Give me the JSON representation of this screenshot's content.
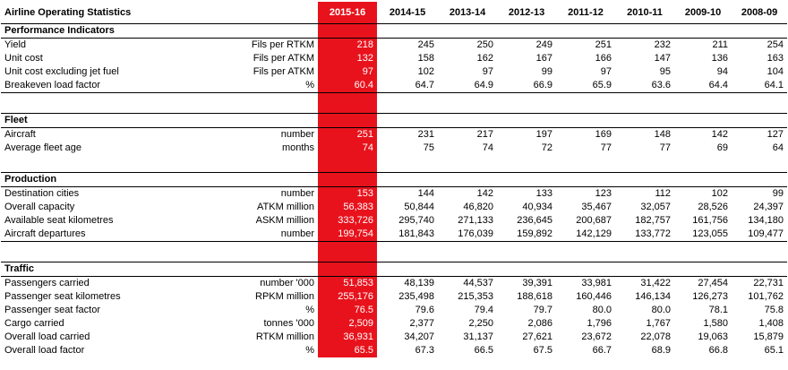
{
  "table": {
    "title": "Airline Operating Statistics",
    "years": [
      "2015-16",
      "2014-15",
      "2013-14",
      "2012-13",
      "2011-12",
      "2010-11",
      "2009-10",
      "2008-09"
    ],
    "sections": [
      {
        "name": "Performance Indicators",
        "rows": [
          {
            "label": "Yield",
            "unit": "Fils per RTKM",
            "values": [
              "218",
              "245",
              "250",
              "249",
              "251",
              "232",
              "211",
              "254"
            ]
          },
          {
            "label": "Unit cost",
            "unit": "Fils per ATKM",
            "values": [
              "132",
              "158",
              "162",
              "167",
              "166",
              "147",
              "136",
              "163"
            ]
          },
          {
            "label": "Unit cost excluding jet fuel",
            "unit": "Fils per ATKM",
            "values": [
              "97",
              "102",
              "97",
              "99",
              "97",
              "95",
              "94",
              "104"
            ]
          },
          {
            "label": "Breakeven load factor",
            "unit": "%",
            "values": [
              "60.4",
              "64.7",
              "64.9",
              "66.9",
              "65.9",
              "63.6",
              "64.4",
              "64.1"
            ]
          }
        ]
      },
      {
        "name": "Fleet",
        "rows": [
          {
            "label": "Aircraft",
            "unit": "number",
            "values": [
              "251",
              "231",
              "217",
              "197",
              "169",
              "148",
              "142",
              "127"
            ]
          },
          {
            "label": "Average fleet age",
            "unit": "months",
            "values": [
              "74",
              "75",
              "74",
              "72",
              "77",
              "77",
              "69",
              "64"
            ]
          }
        ]
      },
      {
        "name": "Production",
        "rows": [
          {
            "label": "Destination cities",
            "unit": "number",
            "values": [
              "153",
              "144",
              "142",
              "133",
              "123",
              "112",
              "102",
              "99"
            ]
          },
          {
            "label": "Overall capacity",
            "unit": "ATKM million",
            "values": [
              "56,383",
              "50,844",
              "46,820",
              "40,934",
              "35,467",
              "32,057",
              "28,526",
              "24,397"
            ]
          },
          {
            "label": "Available seat kilometres",
            "unit": "ASKM million",
            "values": [
              "333,726",
              "295,740",
              "271,133",
              "236,645",
              "200,687",
              "182,757",
              "161,756",
              "134,180"
            ]
          },
          {
            "label": "Aircraft departures",
            "unit": "number",
            "values": [
              "199,754",
              "181,843",
              "176,039",
              "159,892",
              "142,129",
              "133,772",
              "123,055",
              "109,477"
            ]
          }
        ]
      },
      {
        "name": "Traffic",
        "rows": [
          {
            "label": "Passengers carried",
            "unit": "number '000",
            "values": [
              "51,853",
              "48,139",
              "44,537",
              "39,391",
              "33,981",
              "31,422",
              "27,454",
              "22,731"
            ]
          },
          {
            "label": "Passenger seat kilometres",
            "unit": "RPKM million",
            "values": [
              "255,176",
              "235,498",
              "215,353",
              "188,618",
              "160,446",
              "146,134",
              "126,273",
              "101,762"
            ]
          },
          {
            "label": "Passenger seat factor",
            "unit": "%",
            "values": [
              "76.5",
              "79.6",
              "79.4",
              "79.7",
              "80.0",
              "80.0",
              "78.1",
              "75.8"
            ]
          },
          {
            "label": "Cargo carried",
            "unit": "tonnes '000",
            "values": [
              "2,509",
              "2,377",
              "2,250",
              "2,086",
              "1,796",
              "1,767",
              "1,580",
              "1,408"
            ]
          },
          {
            "label": "Overall load carried",
            "unit": "RTKM million",
            "values": [
              "36,931",
              "34,207",
              "31,137",
              "27,621",
              "23,672",
              "22,078",
              "19,063",
              "15,879"
            ]
          },
          {
            "label": "Overall load factor",
            "unit": "%",
            "values": [
              "65.5",
              "67.3",
              "66.5",
              "67.5",
              "66.7",
              "68.9",
              "66.8",
              "65.1"
            ]
          }
        ]
      }
    ]
  },
  "colors": {
    "highlight": "#e8121c",
    "highlight_text": "#ffffff"
  }
}
